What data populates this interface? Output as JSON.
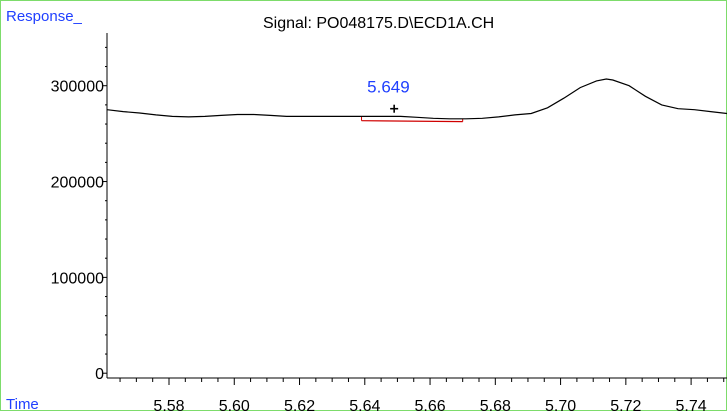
{
  "window": {
    "y_axis_label": "Response_",
    "signal_title": "Signal: PO048175.D\\ECD1A.CH",
    "x_axis_label": "Time"
  },
  "colors": {
    "label_blue": "#1f3fff",
    "peak_red": "#d00000",
    "axis": "#000000",
    "border_green": "#7ddc6b"
  },
  "chart_data": {
    "type": "line",
    "title": "Signal: PO048175.D\\ECD1A.CH",
    "xlabel": "Time",
    "ylabel": "Response_",
    "xlim": [
      5.561,
      5.751
    ],
    "ylim": [
      -5000,
      355000
    ],
    "x_ticks": [
      "5.58",
      "5.60",
      "5.62",
      "5.64",
      "5.66",
      "5.68",
      "5.70",
      "5.72",
      "5.74"
    ],
    "y_ticks": [
      "0",
      "100000",
      "200000",
      "300000"
    ],
    "series": [
      {
        "x": [
          5.561,
          5.566,
          5.571,
          5.576,
          5.581,
          5.586,
          5.591,
          5.596,
          5.601,
          5.606,
          5.611,
          5.616,
          5.621,
          5.626,
          5.631,
          5.636,
          5.641,
          5.646,
          5.651,
          5.656,
          5.661,
          5.666,
          5.671,
          5.676,
          5.681,
          5.686,
          5.691,
          5.696,
          5.701,
          5.706,
          5.711,
          5.714,
          5.716,
          5.721,
          5.726,
          5.731,
          5.736,
          5.741,
          5.746,
          5.751
        ],
        "y": [
          275000,
          273000,
          271500,
          269500,
          268000,
          267500,
          268000,
          269000,
          270000,
          270000,
          269000,
          268000,
          268000,
          268000,
          268000,
          268000,
          268000,
          268000,
          268000,
          267000,
          266000,
          265500,
          265500,
          266000,
          267500,
          269500,
          271000,
          277000,
          287000,
          298000,
          305000,
          307000,
          306000,
          300000,
          289000,
          280000,
          276000,
          275000,
          273000,
          271000
        ]
      }
    ],
    "peak": {
      "label": "5.649",
      "apex_x": 5.649,
      "baseline": {
        "x": [
          5.639,
          5.67
        ],
        "y": [
          263500,
          262500
        ]
      }
    }
  }
}
